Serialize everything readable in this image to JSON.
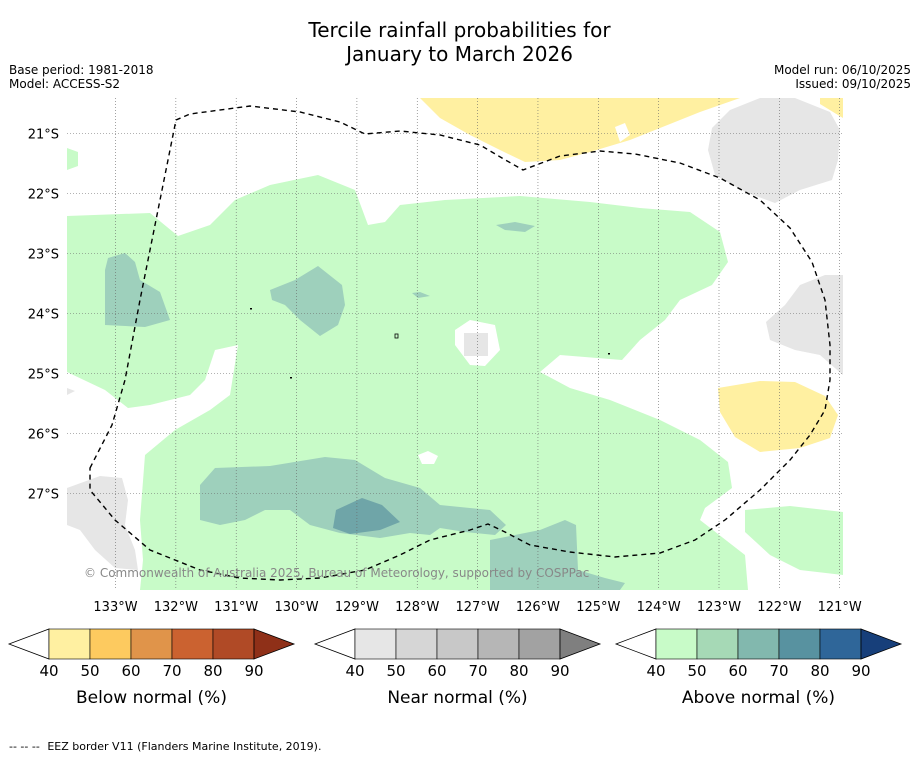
{
  "title_line1": "Tercile rainfall probabilities for",
  "title_line2": "January to March 2026",
  "base_period": "Base period: 1981-2018",
  "model": "Model: ACCESS-S2",
  "model_run": "Model run: 06/10/2025",
  "issued": "Issued: 09/10/2025",
  "copyright": "© Commonwealth of Australia 2025, Bureau of Meteorology, supported by COSPPac",
  "lon_labels": [
    "133°W",
    "132°W",
    "131°W",
    "130°W",
    "129°W",
    "128°W",
    "127°W",
    "126°W",
    "125°W",
    "124°W",
    "123°W",
    "122°W",
    "121°W"
  ],
  "lat_labels": [
    "21°S",
    "22°S",
    "23°S",
    "24°S",
    "25°S",
    "26°S",
    "27°S"
  ],
  "colorbars": [
    {
      "label": "Below normal (%)",
      "colors": [
        "#fff0a1",
        "#fdca5f",
        "#e0944a",
        "#cb6230",
        "#b04a26"
      ],
      "arrow": "#8f3018"
    },
    {
      "label": "Near normal (%)",
      "colors": [
        "#e6e6e6",
        "#d6d6d6",
        "#c8c8c8",
        "#b6b6b6",
        "#a2a2a2"
      ],
      "arrow": "#7f7f7f"
    },
    {
      "label": "Above normal (%)",
      "colors": [
        "#c8fbc8",
        "#a6d9b6",
        "#82b8ae",
        "#5892a0",
        "#2f6699"
      ],
      "arrow": "#173f7a"
    }
  ],
  "tick_values": [
    "40",
    "50",
    "60",
    "70",
    "80",
    "90"
  ],
  "footer_dash": "--  --  --",
  "footer_text": "EEZ border V11 (Flanders Marine Institute, 2019)."
}
